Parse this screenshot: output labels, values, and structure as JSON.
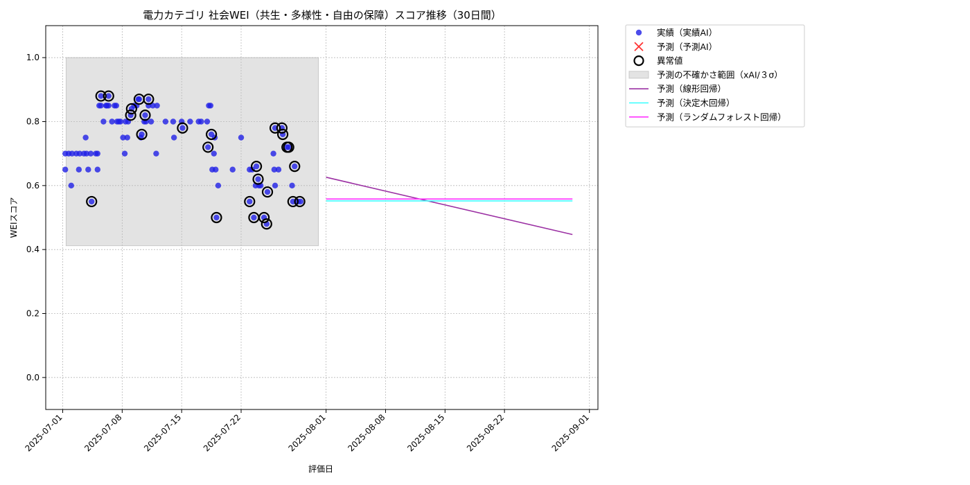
{
  "chart_data": {
    "type": "scatter",
    "title": "電力カテゴリ 社会WEI（共生・多様性・自由の保障）スコア推移（30日間）",
    "xlabel": "評価日",
    "ylabel": "WEIスコア",
    "x_range": [
      "2025-06-29",
      "2025-09-02"
    ],
    "ylim": [
      -0.1,
      1.1
    ],
    "x_ticks": [
      "2025-07-01",
      "2025-07-08",
      "2025-07-15",
      "2025-07-22",
      "2025-08-01",
      "2025-08-08",
      "2025-08-15",
      "2025-08-22",
      "2025-09-01"
    ],
    "y_ticks": [
      0.0,
      0.2,
      0.4,
      0.6,
      0.8,
      1.0
    ],
    "grid": true,
    "legend_position": "outside-top-right",
    "colors": {
      "actual": "#1f1fe6",
      "predicted_ai": "#ff3333",
      "anomaly": "#000000",
      "uncertainty": "#e3e3e3",
      "linear": "#9b30a3",
      "tree": "#33ffff",
      "forest": "#ff33ff"
    },
    "legend": [
      {
        "key": "actual",
        "label": "実績（実績AI）",
        "marker": "dot"
      },
      {
        "key": "predicted_ai",
        "label": "予測（予測AI）",
        "marker": "cross"
      },
      {
        "key": "anomaly",
        "label": "異常値",
        "marker": "ring"
      },
      {
        "key": "uncertainty",
        "label": "予測の不確かさ範囲（xAI/３σ）",
        "marker": "box"
      },
      {
        "key": "linear",
        "label": "予測（線形回帰）",
        "marker": "line"
      },
      {
        "key": "tree",
        "label": "予測（決定木回帰）",
        "marker": "line"
      },
      {
        "key": "forest",
        "label": "予測（ランダムフォレスト回帰）",
        "marker": "line"
      }
    ],
    "uncertainty_band": {
      "x_start": "2025-07-01.4",
      "x_end": "2025-07-31.1",
      "y_low": 0.412,
      "y_high": 1.0
    },
    "series": [
      {
        "name": "実績（実績AI）",
        "kind": "scatter",
        "points": [
          [
            "2025-07-01.3",
            0.7
          ],
          [
            "2025-07-01.3",
            0.65
          ],
          [
            "2025-07-01.7",
            0.7
          ],
          [
            "2025-07-02.0",
            0.6
          ],
          [
            "2025-07-02.1",
            0.7
          ],
          [
            "2025-07-02.6",
            0.7
          ],
          [
            "2025-07-02.9",
            0.65
          ],
          [
            "2025-07-03.0",
            0.7
          ],
          [
            "2025-07-03.5",
            0.7
          ],
          [
            "2025-07-03.7",
            0.75
          ],
          [
            "2025-07-03.8",
            0.7
          ],
          [
            "2025-07-04.0",
            0.65
          ],
          [
            "2025-07-04.3",
            0.7
          ],
          [
            "2025-07-04.4",
            0.55
          ],
          [
            "2025-07-04.9",
            0.7
          ],
          [
            "2025-07-05.1",
            0.65
          ],
          [
            "2025-07-05.1",
            0.7
          ],
          [
            "2025-07-05.3",
            0.85
          ],
          [
            "2025-07-05.5",
            0.88
          ],
          [
            "2025-07-05.5",
            0.85
          ],
          [
            "2025-07-05.8",
            0.8
          ],
          [
            "2025-07-06.1",
            0.85
          ],
          [
            "2025-07-06.2",
            0.85
          ],
          [
            "2025-07-06.4",
            0.88
          ],
          [
            "2025-07-06.4",
            0.85
          ],
          [
            "2025-07-06.8",
            0.8
          ],
          [
            "2025-07-07.1",
            0.85
          ],
          [
            "2025-07-07.3",
            0.85
          ],
          [
            "2025-07-07.4",
            0.8
          ],
          [
            "2025-07-07.6",
            0.8
          ],
          [
            "2025-07-07.8",
            0.8
          ],
          [
            "2025-07-08.1",
            0.75
          ],
          [
            "2025-07-08.3",
            0.7
          ],
          [
            "2025-07-08.4",
            0.8
          ],
          [
            "2025-07-08.6",
            0.75
          ],
          [
            "2025-07-08.7",
            0.8
          ],
          [
            "2025-07-09.0",
            0.82
          ],
          [
            "2025-07-09.1",
            0.84
          ],
          [
            "2025-07-09.4",
            0.85
          ],
          [
            "2025-07-09.7",
            0.85
          ],
          [
            "2025-07-09.9",
            0.87
          ],
          [
            "2025-07-10.0",
            0.87
          ],
          [
            "2025-07-10.2",
            0.75
          ],
          [
            "2025-07-10.3",
            0.76
          ],
          [
            "2025-07-10.6",
            0.8
          ],
          [
            "2025-07-10.7",
            0.82
          ],
          [
            "2025-07-10.8",
            0.8
          ],
          [
            "2025-07-11.1",
            0.87
          ],
          [
            "2025-07-11.1",
            0.85
          ],
          [
            "2025-07-11.4",
            0.8
          ],
          [
            "2025-07-11.6",
            0.85
          ],
          [
            "2025-07-12.0",
            0.7
          ],
          [
            "2025-07-12.1",
            0.85
          ],
          [
            "2025-07-13.1",
            0.8
          ],
          [
            "2025-07-14.0",
            0.8
          ],
          [
            "2025-07-14.1",
            0.75
          ],
          [
            "2025-07-15.0",
            0.8
          ],
          [
            "2025-07-15.1",
            0.78
          ],
          [
            "2025-07-16.0",
            0.8
          ],
          [
            "2025-07-17.0",
            0.8
          ],
          [
            "2025-07-17.3",
            0.8
          ],
          [
            "2025-07-18.0",
            0.8
          ],
          [
            "2025-07-18.1",
            0.72
          ],
          [
            "2025-07-18.2",
            0.85
          ],
          [
            "2025-07-18.4",
            0.85
          ],
          [
            "2025-07-18.5",
            0.76
          ],
          [
            "2025-07-18.6",
            0.65
          ],
          [
            "2025-07-18.8",
            0.7
          ],
          [
            "2025-07-18.9",
            0.75
          ],
          [
            "2025-07-19.0",
            0.65
          ],
          [
            "2025-07-19.1",
            0.5
          ],
          [
            "2025-07-19.3",
            0.6
          ],
          [
            "2025-07-21.0",
            0.65
          ],
          [
            "2025-07-22.0",
            0.75
          ],
          [
            "2025-07-23.0",
            0.65
          ],
          [
            "2025-07-23.0",
            0.55
          ],
          [
            "2025-07-23.3",
            0.65
          ],
          [
            "2025-07-23.5",
            0.5
          ],
          [
            "2025-07-23.7",
            0.6
          ],
          [
            "2025-07-23.8",
            0.66
          ],
          [
            "2025-07-24.0",
            0.62
          ],
          [
            "2025-07-24.1",
            0.6
          ],
          [
            "2025-07-24.3",
            0.6
          ],
          [
            "2025-07-24.7",
            0.5
          ],
          [
            "2025-07-25.0",
            0.48
          ],
          [
            "2025-07-25.1",
            0.58
          ],
          [
            "2025-07-25.8",
            0.7
          ],
          [
            "2025-07-25.9",
            0.65
          ],
          [
            "2025-07-26.0",
            0.78
          ],
          [
            "2025-07-26.0",
            0.6
          ],
          [
            "2025-07-26.4",
            0.65
          ],
          [
            "2025-07-26.8",
            0.78
          ],
          [
            "2025-07-26.9",
            0.76
          ],
          [
            "2025-07-27.4",
            0.72
          ],
          [
            "2025-07-27.6",
            0.72
          ],
          [
            "2025-07-28.0",
            0.6
          ],
          [
            "2025-07-28.1",
            0.55
          ],
          [
            "2025-07-28.3",
            0.66
          ],
          [
            "2025-07-28.7",
            0.55
          ],
          [
            "2025-07-29.0",
            0.55
          ]
        ]
      },
      {
        "name": "異常値",
        "kind": "ring",
        "points": [
          [
            "2025-07-04.4",
            0.55
          ],
          [
            "2025-07-05.5",
            0.88
          ],
          [
            "2025-07-06.4",
            0.88
          ],
          [
            "2025-07-09.0",
            0.82
          ],
          [
            "2025-07-09.1",
            0.84
          ],
          [
            "2025-07-10.0",
            0.87
          ],
          [
            "2025-07-10.3",
            0.76
          ],
          [
            "2025-07-10.7",
            0.82
          ],
          [
            "2025-07-11.1",
            0.87
          ],
          [
            "2025-07-15.1",
            0.78
          ],
          [
            "2025-07-18.1",
            0.72
          ],
          [
            "2025-07-18.5",
            0.76
          ],
          [
            "2025-07-19.1",
            0.5
          ],
          [
            "2025-07-23.0",
            0.55
          ],
          [
            "2025-07-23.5",
            0.5
          ],
          [
            "2025-07-23.8",
            0.66
          ],
          [
            "2025-07-24.0",
            0.62
          ],
          [
            "2025-07-24.7",
            0.5
          ],
          [
            "2025-07-25.0",
            0.48
          ],
          [
            "2025-07-25.1",
            0.58
          ],
          [
            "2025-07-26.0",
            0.78
          ],
          [
            "2025-07-26.8",
            0.78
          ],
          [
            "2025-07-26.9",
            0.76
          ],
          [
            "2025-07-27.4",
            0.72
          ],
          [
            "2025-07-27.6",
            0.72
          ],
          [
            "2025-07-28.3",
            0.66
          ],
          [
            "2025-07-28.1",
            0.55
          ],
          [
            "2025-07-28.9",
            0.55
          ]
        ]
      },
      {
        "name": "予測（線形回帰）",
        "kind": "line",
        "color_key": "linear",
        "points": [
          [
            "2025-08-01.0",
            0.626
          ],
          [
            "2025-08-30.0",
            0.447
          ]
        ]
      },
      {
        "name": "予測（決定木回帰）",
        "kind": "line",
        "color_key": "tree",
        "points": [
          [
            "2025-08-01.0",
            0.552
          ],
          [
            "2025-08-30.0",
            0.552
          ]
        ]
      },
      {
        "name": "予測（ランダムフォレスト回帰）",
        "kind": "line",
        "color_key": "forest",
        "points": [
          [
            "2025-08-01.0",
            0.558
          ],
          [
            "2025-08-30.0",
            0.558
          ]
        ]
      }
    ]
  }
}
